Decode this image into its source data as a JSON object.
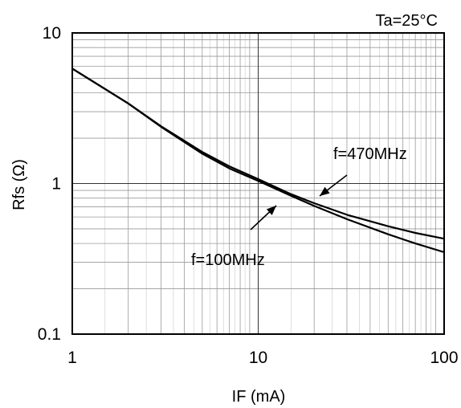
{
  "chart_data": {
    "type": "line",
    "title": "",
    "condition_label": "Ta=25°C",
    "xlabel": "IF (mA)",
    "ylabel": "Rfs (Ω)",
    "xscale": "log",
    "yscale": "log",
    "xlim": [
      1,
      100
    ],
    "ylim": [
      0.1,
      10
    ],
    "grid": true,
    "x_ticks": [
      {
        "value": 1,
        "label": "1"
      },
      {
        "value": 10,
        "label": "10"
      },
      {
        "value": 100,
        "label": "100"
      }
    ],
    "y_ticks": [
      {
        "value": 0.1,
        "label": "0.1"
      },
      {
        "value": 1,
        "label": "1"
      },
      {
        "value": 10,
        "label": "10"
      }
    ],
    "series": [
      {
        "name": "f=470MHz",
        "x": [
          1,
          2,
          3,
          5,
          7,
          10,
          15,
          20,
          30,
          50,
          70,
          100
        ],
        "y": [
          5.8,
          3.4,
          2.4,
          1.62,
          1.3,
          1.07,
          0.85,
          0.74,
          0.62,
          0.52,
          0.47,
          0.43
        ]
      },
      {
        "name": "f=100MHz",
        "x": [
          1,
          2,
          3,
          5,
          7,
          10,
          15,
          20,
          30,
          50,
          70,
          100
        ],
        "y": [
          5.8,
          3.4,
          2.38,
          1.58,
          1.26,
          1.04,
          0.83,
          0.71,
          0.58,
          0.46,
          0.4,
          0.35
        ]
      }
    ],
    "annotations": [
      {
        "text": "f=470MHz",
        "series": "f=470MHz"
      },
      {
        "text": "f=100MHz",
        "series": "f=100MHz"
      }
    ]
  }
}
